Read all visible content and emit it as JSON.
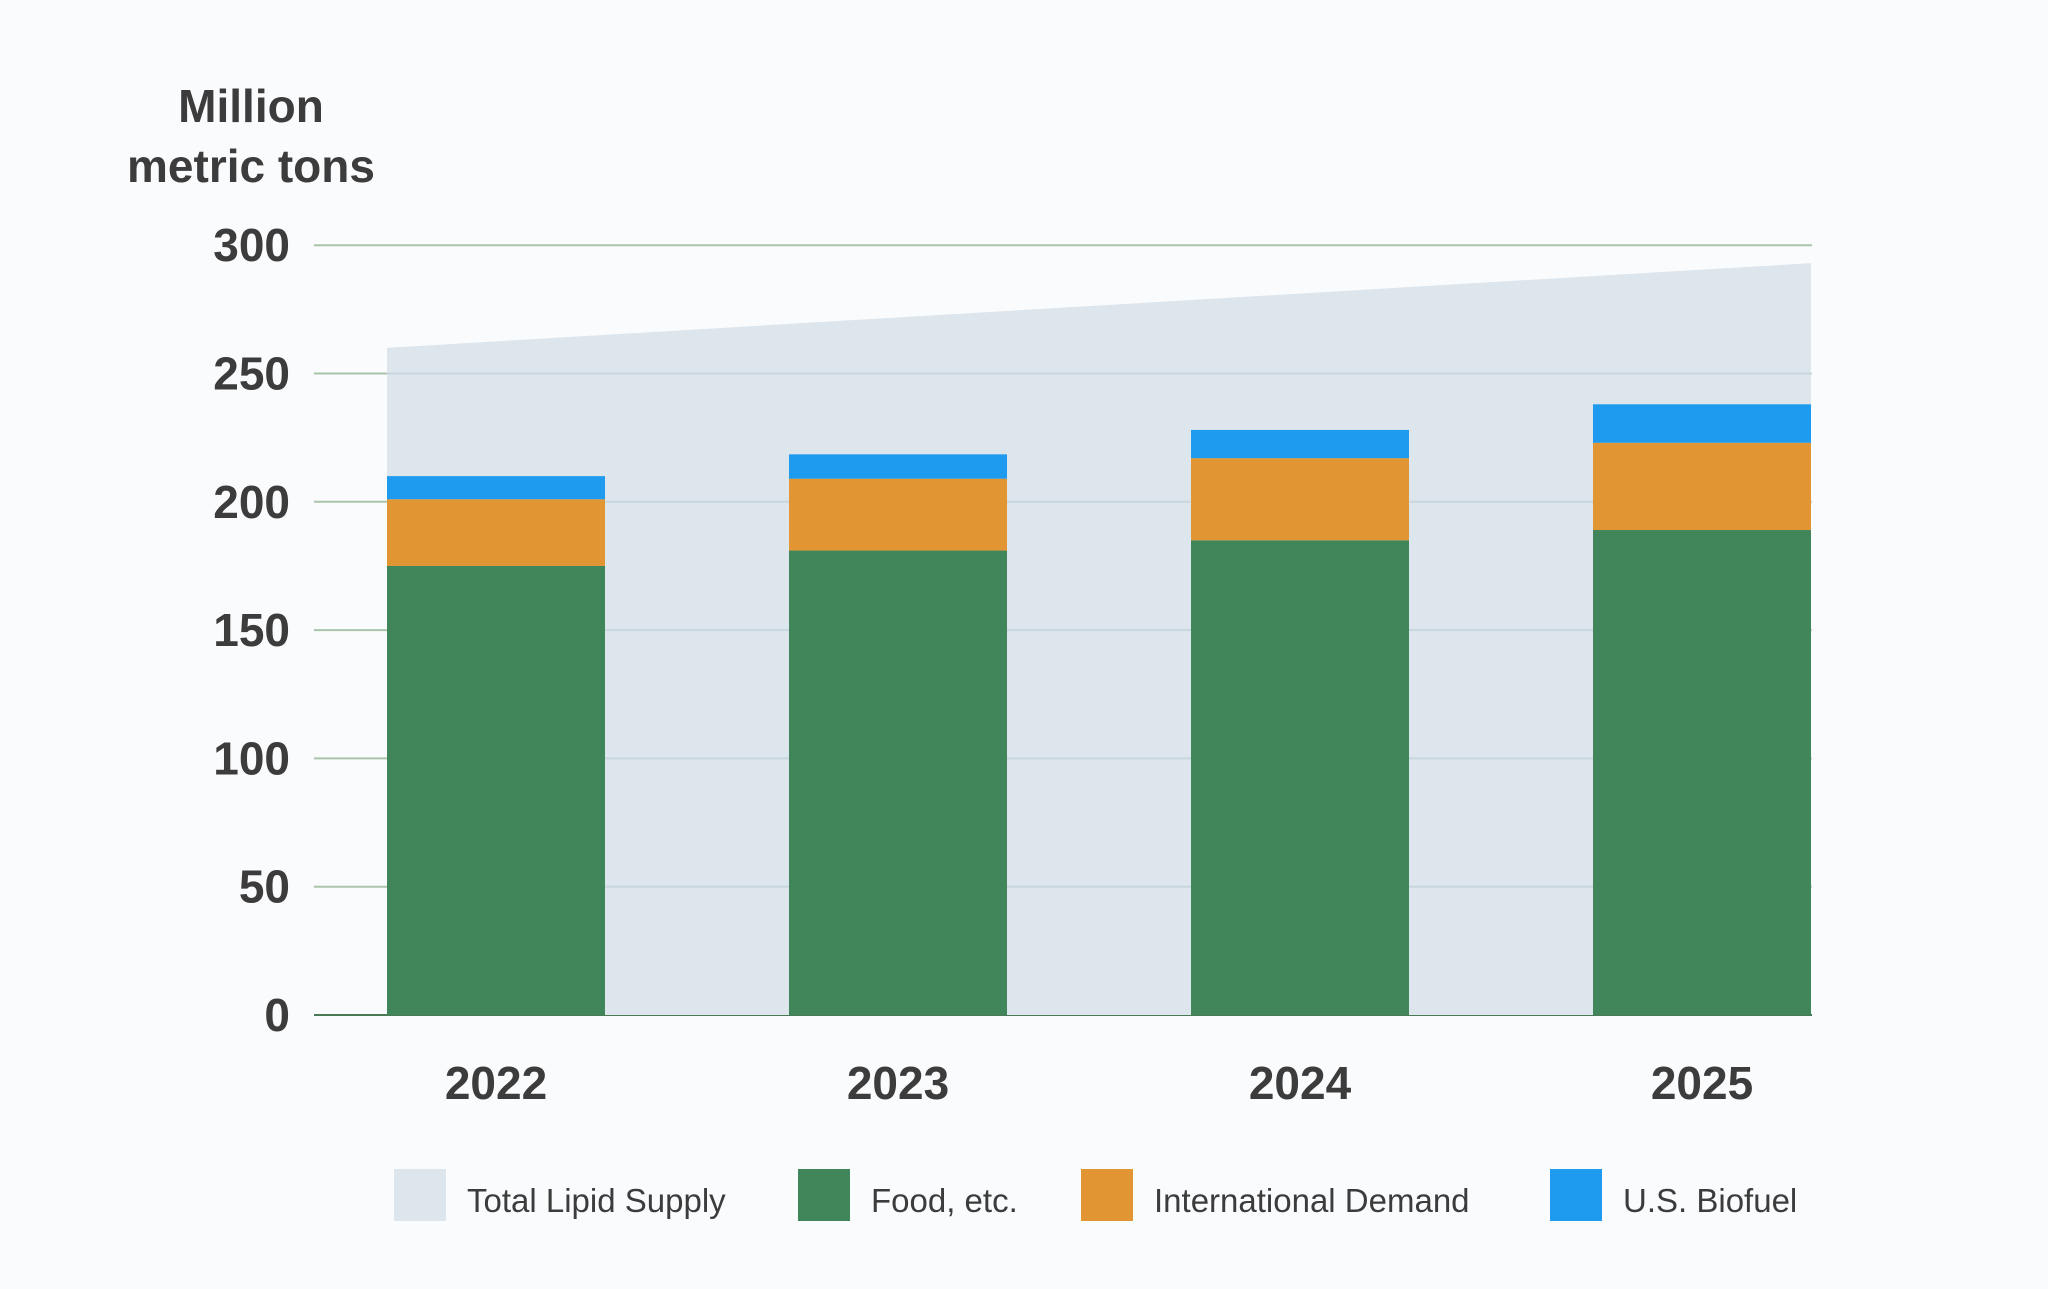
{
  "chart_data": {
    "type": "bar",
    "stacked": true,
    "title": "",
    "ylabel": [
      "Million",
      "metric tons"
    ],
    "xlabel": "",
    "ylim": [
      0,
      300
    ],
    "yticks": [
      0,
      50,
      100,
      150,
      200,
      250,
      300
    ],
    "categories": [
      "2022",
      "2023",
      "2024",
      "2025"
    ],
    "grid": true,
    "legend_position": "bottom",
    "area": {
      "name": "Total Lipid Supply",
      "values": [
        260,
        293
      ],
      "color": "#dce6ec"
    },
    "series": [
      {
        "name": "Food, etc.",
        "values": [
          175,
          181,
          185,
          189
        ],
        "color": "#40865a"
      },
      {
        "name": "International Demand",
        "values": [
          26,
          28,
          32,
          34
        ],
        "color": "#e19533"
      },
      {
        "name": "U.S. Biofuel",
        "values": [
          9,
          9.5,
          11,
          15
        ],
        "color": "#1e9bef"
      }
    ],
    "legend": [
      "Total Lipid Supply",
      "Food, etc.",
      "International Demand",
      "U.S. Biofuel"
    ]
  }
}
